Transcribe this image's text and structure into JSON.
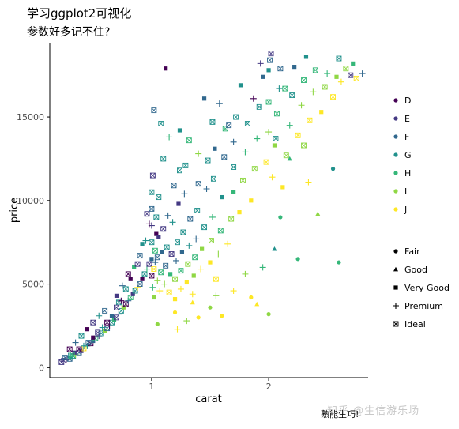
{
  "title": "学习ggplot2可视化",
  "subtitle": "参数好多记不住?",
  "caption": "熟能生巧!",
  "watermark": "知乎 @生信游乐场",
  "chart_data": {
    "type": "scatter",
    "xlabel": "carat",
    "ylabel": "price",
    "xlim": [
      0.13,
      2.85
    ],
    "ylim": [
      -600,
      19400
    ],
    "x_ticks": [
      1,
      2
    ],
    "y_ticks": [
      0,
      5000,
      10000,
      15000
    ],
    "x_tick_labels": [
      "1",
      "2"
    ],
    "y_tick_labels": [
      "0",
      "5000",
      "10000",
      "15000"
    ],
    "grid": false,
    "legend_position": "right",
    "color_legend": {
      "title": "",
      "entries": [
        {
          "label": "D",
          "color": "#440154"
        },
        {
          "label": "E",
          "color": "#443983"
        },
        {
          "label": "F",
          "color": "#31688e"
        },
        {
          "label": "G",
          "color": "#21918c"
        },
        {
          "label": "H",
          "color": "#35b779"
        },
        {
          "label": "I",
          "color": "#8fd744"
        },
        {
          "label": "J",
          "color": "#fde725"
        }
      ]
    },
    "shape_legend": {
      "title": "",
      "entries": [
        {
          "label": "Fair",
          "shape": "circle"
        },
        {
          "label": "Good",
          "shape": "triangle"
        },
        {
          "label": "Very Good",
          "shape": "square"
        },
        {
          "label": "Premium",
          "shape": "plus"
        },
        {
          "label": "Ideal",
          "shape": "boxed-x"
        }
      ]
    },
    "points": [
      [
        0.23,
        326,
        1,
        4
      ],
      [
        0.25,
        420,
        1,
        4
      ],
      [
        0.27,
        480,
        0,
        3
      ],
      [
        0.3,
        520,
        2,
        4
      ],
      [
        0.31,
        600,
        4,
        2
      ],
      [
        0.33,
        700,
        3,
        4
      ],
      [
        0.35,
        780,
        5,
        3
      ],
      [
        0.38,
        900,
        2,
        4
      ],
      [
        0.4,
        1000,
        1,
        2
      ],
      [
        0.42,
        1150,
        6,
        4
      ],
      [
        0.45,
        1300,
        3,
        3
      ],
      [
        0.48,
        1450,
        0,
        4
      ],
      [
        0.5,
        1600,
        2,
        2
      ],
      [
        0.52,
        1750,
        4,
        4
      ],
      [
        0.55,
        1900,
        1,
        3
      ],
      [
        0.57,
        2050,
        3,
        4
      ],
      [
        0.6,
        2200,
        5,
        2
      ],
      [
        0.62,
        2350,
        2,
        4
      ],
      [
        0.64,
        2500,
        0,
        3
      ],
      [
        0.66,
        2700,
        3,
        4
      ],
      [
        0.68,
        2850,
        4,
        2
      ],
      [
        0.7,
        3000,
        1,
        4
      ],
      [
        0.72,
        3200,
        2,
        3
      ],
      [
        0.74,
        3400,
        3,
        4
      ],
      [
        0.76,
        3600,
        5,
        2
      ],
      [
        0.78,
        3800,
        0,
        4
      ],
      [
        0.8,
        4000,
        2,
        3
      ],
      [
        0.82,
        4200,
        4,
        4
      ],
      [
        0.84,
        4400,
        1,
        2
      ],
      [
        0.86,
        4600,
        3,
        4
      ],
      [
        0.88,
        4800,
        6,
        3
      ],
      [
        0.9,
        5000,
        2,
        4
      ],
      [
        0.92,
        5300,
        0,
        2
      ],
      [
        0.94,
        5600,
        3,
        4
      ],
      [
        0.96,
        5900,
        4,
        3
      ],
      [
        0.98,
        6200,
        1,
        4
      ],
      [
        0.3,
        1100,
        0,
        4
      ],
      [
        0.35,
        1500,
        2,
        3
      ],
      [
        0.4,
        1900,
        3,
        4
      ],
      [
        0.45,
        2300,
        0,
        2
      ],
      [
        0.5,
        2700,
        1,
        4
      ],
      [
        0.55,
        3100,
        3,
        3
      ],
      [
        0.6,
        3400,
        2,
        4
      ],
      [
        0.7,
        4300,
        1,
        2
      ],
      [
        0.72,
        3900,
        3,
        4
      ],
      [
        0.75,
        4900,
        2,
        3
      ],
      [
        0.8,
        5600,
        0,
        4
      ],
      [
        0.85,
        6000,
        4,
        2
      ],
      [
        0.9,
        6700,
        2,
        4
      ],
      [
        0.95,
        7600,
        3,
        3
      ],
      [
        1.0,
        5500,
        0,
        4
      ],
      [
        1.0,
        6500,
        2,
        2
      ],
      [
        1.0,
        7500,
        3,
        4
      ],
      [
        1.0,
        8500,
        1,
        3
      ],
      [
        1.0,
        9500,
        2,
        4
      ],
      [
        1.0,
        10500,
        3,
        4
      ],
      [
        1.01,
        11500,
        1,
        4
      ],
      [
        1.01,
        4800,
        4,
        3
      ],
      [
        1.02,
        4200,
        5,
        2
      ],
      [
        1.02,
        5900,
        6,
        4
      ],
      [
        1.03,
        6300,
        2,
        3
      ],
      [
        1.03,
        7000,
        4,
        4
      ],
      [
        1.04,
        8000,
        0,
        2
      ],
      [
        1.04,
        9000,
        3,
        4
      ],
      [
        1.05,
        5200,
        5,
        3
      ],
      [
        1.05,
        6600,
        2,
        4
      ],
      [
        1.06,
        7800,
        1,
        2
      ],
      [
        1.06,
        10200,
        3,
        4
      ],
      [
        1.07,
        4600,
        6,
        3
      ],
      [
        1.08,
        5700,
        4,
        4
      ],
      [
        1.09,
        6900,
        2,
        2
      ],
      [
        1.1,
        8300,
        1,
        4
      ],
      [
        1.1,
        12500,
        3,
        4
      ],
      [
        1.11,
        5000,
        5,
        3
      ],
      [
        1.12,
        6100,
        2,
        4
      ],
      [
        1.12,
        17900,
        0,
        2
      ],
      [
        1.13,
        7200,
        3,
        4
      ],
      [
        1.14,
        9100,
        2,
        3
      ],
      [
        1.15,
        4500,
        6,
        4
      ],
      [
        1.16,
        5600,
        4,
        2
      ],
      [
        1.17,
        6800,
        1,
        4
      ],
      [
        1.18,
        8700,
        3,
        3
      ],
      [
        1.19,
        10900,
        2,
        4
      ],
      [
        1.2,
        4100,
        6,
        2
      ],
      [
        1.2,
        5300,
        5,
        4
      ],
      [
        1.21,
        6400,
        2,
        3
      ],
      [
        1.22,
        7500,
        3,
        4
      ],
      [
        1.23,
        9800,
        1,
        2
      ],
      [
        1.24,
        11800,
        3,
        4
      ],
      [
        1.25,
        4700,
        6,
        3
      ],
      [
        1.25,
        5800,
        4,
        4
      ],
      [
        1.26,
        6900,
        2,
        2
      ],
      [
        1.27,
        8100,
        3,
        4
      ],
      [
        1.28,
        10400,
        2,
        3
      ],
      [
        1.29,
        12100,
        3,
        4
      ],
      [
        1.3,
        5100,
        6,
        2
      ],
      [
        1.31,
        6200,
        5,
        4
      ],
      [
        1.32,
        7300,
        3,
        3
      ],
      [
        1.33,
        8900,
        2,
        4
      ],
      [
        1.35,
        4400,
        6,
        3
      ],
      [
        1.36,
        5500,
        5,
        2
      ],
      [
        1.37,
        6600,
        4,
        4
      ],
      [
        1.38,
        7700,
        2,
        3
      ],
      [
        1.39,
        9400,
        3,
        4
      ],
      [
        1.4,
        11000,
        2,
        4
      ],
      [
        1.42,
        5900,
        6,
        3
      ],
      [
        1.43,
        7100,
        5,
        2
      ],
      [
        1.45,
        8400,
        3,
        4
      ],
      [
        1.47,
        10700,
        2,
        3
      ],
      [
        1.48,
        12400,
        3,
        4
      ],
      [
        1.5,
        6300,
        6,
        2
      ],
      [
        1.51,
        7600,
        5,
        4
      ],
      [
        1.52,
        9000,
        4,
        3
      ],
      [
        1.53,
        11300,
        3,
        4
      ],
      [
        1.54,
        13100,
        2,
        2
      ],
      [
        1.55,
        5300,
        6,
        4
      ],
      [
        1.57,
        6800,
        5,
        3
      ],
      [
        1.59,
        8200,
        4,
        4
      ],
      [
        1.6,
        10200,
        3,
        2
      ],
      [
        1.62,
        12600,
        2,
        4
      ],
      [
        1.65,
        7400,
        6,
        3
      ],
      [
        1.68,
        8900,
        5,
        4
      ],
      [
        1.7,
        10500,
        4,
        2
      ],
      [
        1.7,
        12000,
        3,
        4
      ],
      [
        1.7,
        13500,
        2,
        3
      ],
      [
        1.72,
        15000,
        3,
        4
      ],
      [
        1.75,
        9300,
        6,
        2
      ],
      [
        1.78,
        11200,
        5,
        4
      ],
      [
        1.8,
        12900,
        4,
        3
      ],
      [
        1.82,
        14600,
        3,
        4
      ],
      [
        1.85,
        10000,
        6,
        2
      ],
      [
        1.88,
        11900,
        5,
        4
      ],
      [
        1.9,
        13700,
        4,
        3
      ],
      [
        1.92,
        15600,
        3,
        4
      ],
      [
        1.95,
        17400,
        2,
        2
      ],
      [
        1.98,
        12300,
        6,
        4
      ],
      [
        2.0,
        14100,
        5,
        3
      ],
      [
        2.0,
        15900,
        4,
        4
      ],
      [
        2.0,
        17800,
        3,
        2
      ],
      [
        2.01,
        18400,
        2,
        4
      ],
      [
        2.02,
        18800,
        1,
        4
      ],
      [
        2.03,
        11400,
        6,
        3
      ],
      [
        2.05,
        13300,
        5,
        2
      ],
      [
        2.07,
        15200,
        4,
        4
      ],
      [
        2.09,
        16700,
        3,
        3
      ],
      [
        2.1,
        17900,
        2,
        4
      ],
      [
        2.12,
        10800,
        6,
        2
      ],
      [
        2.15,
        12700,
        5,
        4
      ],
      [
        2.18,
        14500,
        4,
        3
      ],
      [
        2.2,
        16300,
        3,
        4
      ],
      [
        2.22,
        18000,
        2,
        2
      ],
      [
        2.25,
        13900,
        6,
        4
      ],
      [
        2.28,
        15700,
        5,
        3
      ],
      [
        2.3,
        17200,
        4,
        4
      ],
      [
        2.32,
        18600,
        3,
        2
      ],
      [
        2.35,
        14800,
        6,
        4
      ],
      [
        2.38,
        16500,
        5,
        3
      ],
      [
        2.4,
        17800,
        4,
        4
      ],
      [
        2.45,
        15300,
        6,
        2
      ],
      [
        2.48,
        16800,
        5,
        4
      ],
      [
        2.5,
        17600,
        4,
        3
      ],
      [
        2.55,
        16200,
        6,
        4
      ],
      [
        2.58,
        17400,
        5,
        2
      ],
      [
        2.6,
        18500,
        3,
        4
      ],
      [
        2.62,
        17100,
        6,
        3
      ],
      [
        2.66,
        17900,
        5,
        4
      ],
      [
        2.7,
        17500,
        1,
        4
      ],
      [
        2.72,
        18200,
        4,
        2
      ],
      [
        2.75,
        17300,
        6,
        4
      ],
      [
        2.8,
        17600,
        2,
        3
      ],
      [
        1.05,
        2600,
        5,
        0
      ],
      [
        1.2,
        3300,
        6,
        0
      ],
      [
        1.35,
        3900,
        6,
        1
      ],
      [
        1.5,
        3600,
        5,
        0
      ],
      [
        1.7,
        4600,
        6,
        3
      ],
      [
        1.9,
        3800,
        6,
        1
      ],
      [
        2.0,
        3200,
        5,
        0
      ],
      [
        2.05,
        7100,
        3,
        1
      ],
      [
        2.25,
        6500,
        4,
        0
      ],
      [
        2.55,
        11900,
        3,
        0
      ],
      [
        1.22,
        2300,
        6,
        3
      ],
      [
        1.3,
        2800,
        5,
        3
      ],
      [
        1.4,
        3000,
        6,
        0
      ],
      [
        1.55,
        4300,
        5,
        3
      ],
      [
        1.6,
        3100,
        6,
        0
      ],
      [
        1.8,
        5600,
        5,
        3
      ],
      [
        1.85,
        4200,
        6,
        0
      ],
      [
        1.95,
        6000,
        4,
        3
      ],
      [
        2.1,
        9000,
        4,
        0
      ],
      [
        2.18,
        12500,
        4,
        1
      ],
      [
        1.02,
        15400,
        2,
        4
      ],
      [
        1.08,
        14600,
        3,
        4
      ],
      [
        1.15,
        13800,
        4,
        3
      ],
      [
        1.24,
        14200,
        3,
        2
      ],
      [
        1.32,
        13600,
        4,
        4
      ],
      [
        1.4,
        12800,
        5,
        3
      ],
      [
        1.45,
        16100,
        2,
        2
      ],
      [
        1.52,
        14700,
        3,
        4
      ],
      [
        1.58,
        15800,
        2,
        3
      ],
      [
        1.63,
        14300,
        4,
        4
      ],
      [
        0.96,
        9200,
        1,
        4
      ],
      [
        0.98,
        8600,
        0,
        3
      ],
      [
        0.92,
        7400,
        3,
        2
      ],
      [
        0.88,
        6200,
        1,
        4
      ],
      [
        0.82,
        5300,
        0,
        2
      ],
      [
        0.78,
        4700,
        3,
        4
      ],
      [
        0.74,
        4000,
        0,
        3
      ],
      [
        0.7,
        3600,
        1,
        4
      ],
      [
        0.66,
        3100,
        2,
        2
      ],
      [
        0.62,
        2700,
        0,
        4
      ],
      [
        0.58,
        2400,
        3,
        3
      ],
      [
        0.54,
        2100,
        1,
        4
      ],
      [
        0.5,
        1800,
        0,
        2
      ],
      [
        0.46,
        1500,
        2,
        4
      ],
      [
        0.42,
        1300,
        3,
        3
      ],
      [
        0.38,
        1100,
        0,
        4
      ],
      [
        0.34,
        900,
        1,
        2
      ],
      [
        0.32,
        800,
        4,
        4
      ],
      [
        0.29,
        700,
        3,
        3
      ],
      [
        0.26,
        600,
        2,
        4
      ],
      [
        1.87,
        16100,
        0,
        3
      ],
      [
        1.93,
        18200,
        1,
        3
      ],
      [
        2.06,
        13700,
        3,
        4
      ],
      [
        2.14,
        16700,
        4,
        4
      ],
      [
        2.3,
        13300,
        5,
        4
      ],
      [
        2.34,
        11100,
        6,
        3
      ],
      [
        2.42,
        9200,
        5,
        1
      ],
      [
        2.6,
        6300,
        4,
        0
      ],
      [
        1.76,
        16900,
        3,
        2
      ],
      [
        1.66,
        14500,
        2,
        4
      ]
    ]
  }
}
